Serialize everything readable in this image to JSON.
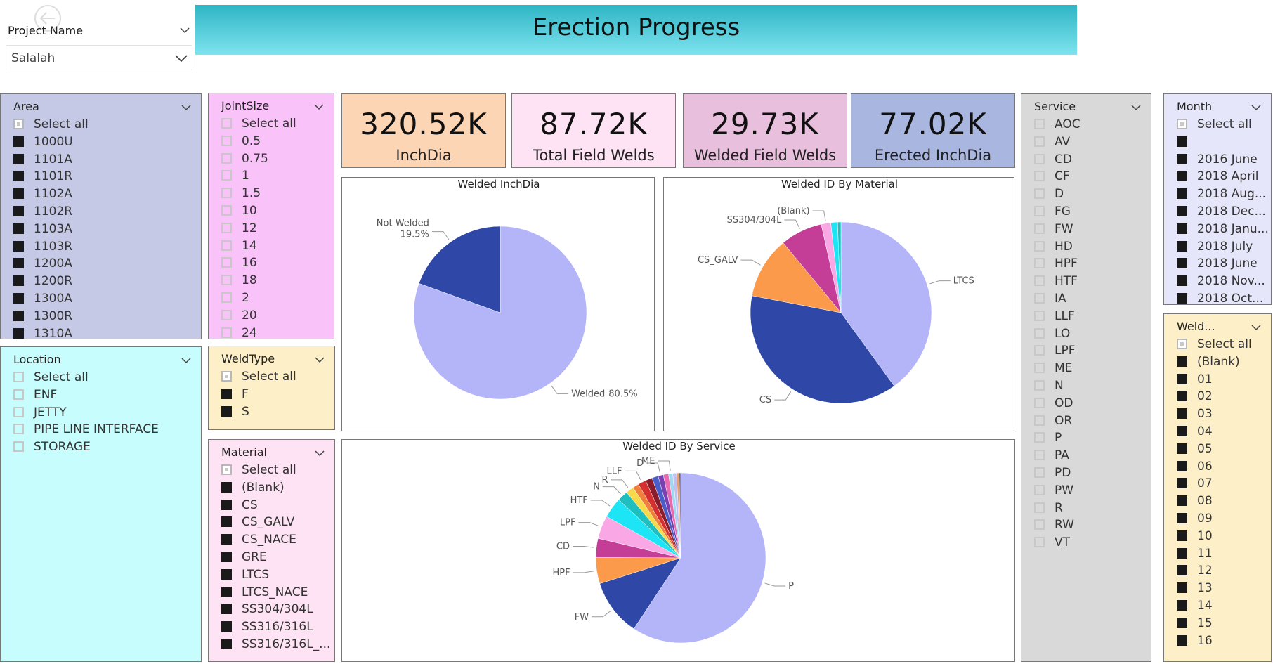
{
  "header": {
    "title": "Erection Progress"
  },
  "project_slicer": {
    "label": "Project Name",
    "value": "Salalah"
  },
  "slicers": [
    {
      "title": "Area",
      "checked": true,
      "select_all": true,
      "items": [
        "Select all",
        "1000U",
        "1101A",
        "1101R",
        "1102A",
        "1102R",
        "1103A",
        "1103R",
        "1200A",
        "1200R",
        "1300A",
        "1300R",
        "1310A"
      ]
    },
    {
      "title": "JointSize",
      "checked": false,
      "select_all": true,
      "items": [
        "Select all",
        "0.5",
        "0.75",
        "1",
        "1.5",
        "10",
        "12",
        "14",
        "16",
        "18",
        "2",
        "20",
        "24"
      ]
    },
    {
      "title": "Location",
      "checked": false,
      "select_all": true,
      "items": [
        "Select all",
        "ENF",
        "JETTY",
        "PIPE LINE INTERFACE",
        "STORAGE"
      ]
    },
    {
      "title": "WeldType",
      "checked": true,
      "select_all": true,
      "items": [
        "Select all",
        "F",
        "S"
      ]
    },
    {
      "title": "Material",
      "checked": true,
      "select_all": true,
      "items": [
        "Select all",
        "(Blank)",
        "CS",
        "CS_GALV",
        "CS_NACE",
        "GRE",
        "LTCS",
        "LTCS_NACE",
        "SS304/304L",
        "SS316/316L",
        "SS316/316L_..."
      ]
    },
    {
      "title": "Service",
      "checked": false,
      "select_all": false,
      "items": [
        "AOC",
        "AV",
        "CD",
        "CF",
        "D",
        "FG",
        "FW",
        "HD",
        "HPF",
        "HTF",
        "IA",
        "LLF",
        "LO",
        "LPF",
        "ME",
        "N",
        "OD",
        "OR",
        "P",
        "PA",
        "PD",
        "PW",
        "R",
        "RW",
        "VT"
      ]
    },
    {
      "title": "Month",
      "checked": true,
      "select_all": true,
      "items": [
        "Select all",
        null,
        "2016 June",
        "2018 April",
        "2018 Aug...",
        "2018 Dec...",
        "2018 Janu...",
        "2018 July",
        "2018 June",
        "2018 Nov...",
        "2018 Oct..."
      ]
    },
    {
      "title": "Weld...",
      "checked": true,
      "select_all": true,
      "items": [
        "Select all",
        "(Blank)",
        "01",
        "02",
        "03",
        "04",
        "05",
        "06",
        "07",
        "08",
        "09",
        "10",
        "11",
        "12",
        "13",
        "14",
        "15",
        "16"
      ]
    }
  ],
  "cards": [
    {
      "value": "320.52K",
      "label": "InchDia",
      "color": "#fcd5b4"
    },
    {
      "value": "87.72K",
      "label": "Total Field Welds",
      "color": "#fde3f3"
    },
    {
      "value": "29.73K",
      "label": "Welded Field Welds",
      "color": "#e8bfdc"
    },
    {
      "value": "77.02K",
      "label": "Erected InchDia",
      "color": "#a9b6e0"
    }
  ],
  "charts": [
    {
      "type": "pie",
      "title": "Welded InchDia",
      "categories": [
        "Welded",
        "Not Welded"
      ],
      "values": [
        80.5,
        19.5
      ],
      "value_labels": [
        "80.5%",
        "19.5%"
      ],
      "colors": [
        "#b4b4f8",
        "#2f48a8"
      ]
    },
    {
      "type": "pie",
      "title": "Welded ID By Material",
      "categories": [
        "LTCS",
        "CS",
        "CS_GALV",
        "SS304/304L",
        "(Blank)",
        null,
        null
      ],
      "values": [
        40,
        38,
        11,
        7.5,
        1.7,
        1.2,
        0.6
      ],
      "colors": [
        "#b4b4f8",
        "#2f48a8",
        "#fb9a4b",
        "#c43d97",
        "#f9a8e5",
        "#1de5f5",
        "#1fbfbf"
      ]
    },
    {
      "type": "pie",
      "title": "Welded ID By Service",
      "categories": [
        "P",
        "FW",
        "HPF",
        "CD",
        "LPF",
        "HTF",
        "N",
        "R",
        null,
        "LLF",
        null,
        null,
        "D",
        null,
        "ME",
        null,
        null,
        null
      ],
      "values": [
        59.3,
        10.8,
        5,
        3.6,
        4.4,
        3.9,
        2,
        1.5,
        1.2,
        1.5,
        1.3,
        1.2,
        1,
        1,
        0.8,
        0.7,
        0.5,
        0.3
      ],
      "colors": [
        "#b4b4f8",
        "#2f48a8",
        "#fb9a4b",
        "#c43d97",
        "#f9a8e5",
        "#1de5f5",
        "#1fbfbf",
        "#f5d94a",
        "#f07f3c",
        "#d4302f",
        "#8a1c2b",
        "#4a5ec8",
        "#7a3fb0",
        "#e86bb0",
        "#9fd8f0",
        "#c0c0f0",
        "#e8a070",
        "#6060a0"
      ]
    }
  ]
}
